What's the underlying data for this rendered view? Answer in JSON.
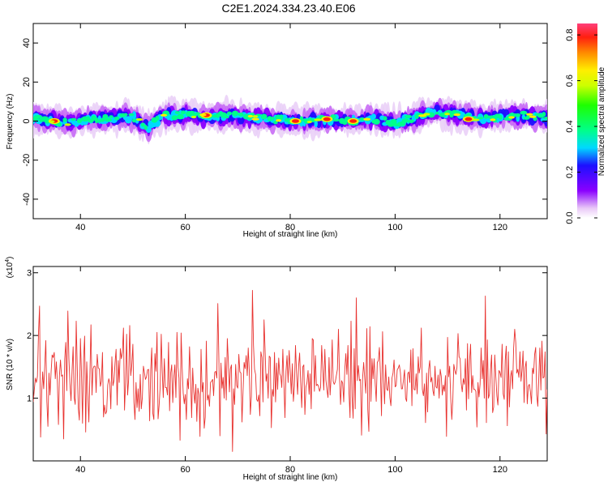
{
  "title": "C2E1.2024.334.23.40.E06",
  "colors": {
    "line": "#e8322f",
    "axis": "#000000",
    "background": "#ffffff"
  },
  "chart_data": [
    {
      "type": "heatmap",
      "xlabel": "Height of straight line (km)",
      "ylabel": "Frequency (Hz)",
      "xlim": [
        31,
        129
      ],
      "ylim": [
        -50,
        50
      ],
      "x_ticks": [
        40,
        60,
        80,
        100,
        120
      ],
      "y_ticks": [
        -40,
        -20,
        0,
        20,
        40
      ],
      "colorbar": {
        "label": "Normalized spectral amplitude",
        "range": [
          0,
          0.85
        ],
        "ticks": [
          0.0,
          0.2,
          0.4,
          0.6,
          0.8
        ],
        "tick_labels": [
          "0.0",
          "0.2",
          "0.4",
          "0.6",
          "0.8"
        ]
      },
      "ridge": {
        "description_free_points": [
          [
            32,
            1
          ],
          [
            35,
            0
          ],
          [
            38,
            -1
          ],
          [
            41,
            1
          ],
          [
            44,
            1
          ],
          [
            47,
            2
          ],
          [
            50,
            2
          ],
          [
            53,
            -3
          ],
          [
            56,
            3
          ],
          [
            60,
            3
          ],
          [
            64,
            2
          ],
          [
            68,
            3
          ],
          [
            72,
            2
          ],
          [
            76,
            1
          ],
          [
            80,
            0
          ],
          [
            84,
            0
          ],
          [
            88,
            1
          ],
          [
            92,
            0
          ],
          [
            96,
            1
          ],
          [
            100,
            -1
          ],
          [
            104,
            2
          ],
          [
            108,
            5
          ],
          [
            112,
            3
          ],
          [
            116,
            1
          ],
          [
            120,
            2
          ],
          [
            124,
            3
          ],
          [
            128,
            2
          ]
        ],
        "peaks": [
          [
            35,
            0
          ],
          [
            64,
            3
          ],
          [
            81,
            0
          ],
          [
            87,
            1
          ],
          [
            92,
            0
          ],
          [
            114,
            1
          ]
        ]
      }
    },
    {
      "type": "line",
      "xlabel": "Height of straight line (km)",
      "ylabel": "SNR (10 * v/v)",
      "multiplier_label": "(x10",
      "multiplier_exp": "4",
      "xlim": [
        31,
        129
      ],
      "ylim": [
        0,
        3.1
      ],
      "x_ticks": [
        40,
        60,
        80,
        100,
        120
      ],
      "y_ticks": [
        1,
        2,
        3
      ],
      "series": [
        {
          "sampling": {
            "x_start": 31,
            "x_step": 0.2
          },
          "y": [
            0.94,
            1.13,
            1.32,
            1.25,
            1.35,
            2.04,
            2.47,
            0.38,
            1.08,
            1.42,
            1.15,
            1.51,
            1.92,
            0.95,
            0.55,
            1.4,
            1.05,
            1.41,
            1.69,
            1.65,
            1.73,
            1.31,
            1.58,
            1.26,
            0.58,
            1.36,
            1.61,
            1.35,
            1.37,
            0.35,
            1.62,
            1.89,
            1.12,
            2.39,
            1.63,
            1.23,
            0.96,
            1.44,
            1.82,
            1.01,
            0.9,
            2.23,
            1.49,
            0.84,
            0.65,
            1.95,
            1.4,
            0.6,
            1.62,
            1.99,
            0.46,
            1.58,
            1.07,
            0.62,
            1.37,
            2.17,
            1.05,
            1.47,
            1.51,
            1.51,
            1.09,
            1.7,
            1.48,
            1.47,
            1.19,
            1.27,
            1.73,
            0.7,
            0.89,
            0.75,
            0.79,
            1.21,
            1.31,
            1.24,
            0.83,
            1.66,
            1.2,
            1.28,
            1.56,
            1.78,
            0.89,
            1.6,
            1.25,
            1.79,
            1.63,
            1.73,
            2.12,
            0.81,
            1.25,
            2.02,
            1.05,
            1.3,
            2.16,
            1.36,
            1.53,
            1.86,
            0.93,
            0.66,
            1.25,
            0.85,
            1.15,
            0.79,
            1.38,
            0.83,
            1.01,
            1.51,
            1.4,
            1.3,
            1.34,
            1.45,
            1.46,
            0.64,
            1.45,
            1.8,
            0.76,
            0.66,
            1.71,
            1.43,
            2.05,
            0.67,
            0.89,
            1.18,
            2.02,
            1.44,
            1.01,
            1.63,
            1.17,
            1.17,
            1.05,
            1.89,
            0.8,
            1.4,
            1.53,
            0.93,
            1.33,
            1.53,
            1.01,
            2.05,
            1.49,
            1.32,
            0.33,
            2.04,
            1.49,
            1.08,
            0.91,
            1.06,
            0.66,
            1.31,
            1.15,
            1.82,
            1.34,
            0.69,
            1.48,
            1.1,
            0.92,
            1.22,
            0.63,
            1.16,
            1.06,
            0.39,
            1.78,
            1.1,
            1.25,
            0.52,
            0.7,
            1.91,
            0.97,
            1.05,
            0.87,
            1.25,
            1.27,
            1.3,
            1.04,
            1.41,
            1.43,
            1.32,
            2.51,
            1.63,
            0.4,
            1.56,
            1.16,
            1.33,
            1.0,
            1.65,
            0.97,
            1.95,
            1.58,
            1.1,
            1.47,
            1.53,
            0.15,
            1.15,
            0.9,
            1.54,
            1.2,
            1.16,
            1.7,
            1.42,
            1.4,
            0.62,
            1.1,
            1.57,
            1.47,
            1.68,
            1.36,
            1.8,
            1.43,
            0.74,
            1.03,
            2.72,
            1.84,
            1.46,
            1.38,
            0.98,
            0.95,
            1.05,
            0.72,
            1.74,
            1.65,
            0.94,
            2.25,
            1.81,
            1.27,
            1.39,
            1.0,
            1.67,
            1.65,
            0.53,
            1.14,
            1.03,
            1.73,
            0.94,
            1.56,
            1.14,
            1.64,
            1.39,
            1.35,
            1.17,
            1.78,
            1.25,
            0.69,
            1.43,
            1.68,
            1.25,
            1.76,
            1.44,
            1.07,
            1.55,
            0.95,
            1.19,
            1.84,
            1.41,
            1.06,
            1.52,
            1.72,
            1.25,
            0.85,
            1.5,
            1.53,
            0.74,
            1.18,
            1.25,
            1.44,
            1.06,
            1.39,
            0.83,
            1.95,
            1.93,
            1.11,
            1.68,
            1.2,
            1.22,
            1.19,
            1.11,
            1.17,
            1.84,
            1.48,
            1.13,
            1.78,
            1.29,
            1.13,
            1.01,
            1.65,
            1.05,
            1.34,
            1.93,
            1.27,
            1.22,
            1.26,
            1.36,
            1.46,
            2.1,
            1.33,
            0.9,
            1.28,
            1.24,
            0.94,
            1.45,
            1.71,
            1.38,
            1.84,
            1.09,
            0.69,
            2.23,
            1.03,
            0.68,
            1.79,
            0.83,
            2.6,
            1.28,
            1.52,
            1.28,
            1.3,
            0.41,
            1.32,
            1.57,
            1.31,
            1.08,
            2.11,
            0.82,
            0.47,
            2.14,
            0.95,
            1.63,
            1.31,
            1.63,
            1.24,
            0.95,
            1.57,
            1.6,
            1.81,
            1.39,
            0.72,
            2.06,
            1.3,
            0.91,
            1.53,
            1.15,
            1.12,
            1.34,
            1.01,
            0.88,
            1.32,
            1.4,
            1.61,
            1.18,
            1.2,
            1.45,
            1.48,
            1.53,
            1.41,
            1.15,
            1.15,
            1.29,
            1.45,
            1.0,
            0.95,
            1.39,
            1.42,
            1.25,
            1.77,
            0.88,
            1.79,
            1.14,
            1.13,
            1.39,
            1.07,
            1.66,
            1.4,
            1.5,
            2.12,
            1.14,
            1.04,
            1.23,
            0.61,
            1.4,
            0.78,
            1.46,
            1.6,
            1.26,
            1.33,
            1.12,
            1.04,
            1.51,
            1.18,
            1.16,
            1.37,
            1.0,
            1.46,
            1.35,
            1.05,
            1.21,
            1.11,
            1.36,
            0.39,
            1.97,
            1.34,
            1.51,
            1.0,
            0.66,
            0.98,
            1.54,
            1.44,
            1.38,
            1.49,
            2.03,
            1.66,
            1.63,
            1.24,
            1.1,
            1.31,
            1.22,
            1.63,
            0.81,
            1.87,
            0.99,
            1.61,
            1.86,
            1.09,
            1.36,
            1.14,
            1.14,
            1.11,
            0.54,
            1.25,
            1.02,
            1.22,
            1.8,
            1.31,
            1.6,
            1.0,
            2.63,
            0.61,
            1.93,
            1.0,
            1.06,
            1.45,
            1.69,
            0.77,
            0.86,
            1.69,
            1.35,
            1.04,
            0.89,
            1.44,
            1.41,
            1.33,
            1.86,
            1.07,
            0.98,
            1.6,
            1.83,
            0.56,
            1.74,
            0.86,
            1.34,
            1.44,
            1.15,
            1.8,
            2.1,
            1.89,
            1.4,
            1.46,
            1.33,
            1.74,
            1.27,
            1.44,
            1.75,
            0.93,
            1.49,
            1.59,
            0.91,
            1.19,
            1.22,
            1.1,
            0.91,
            1.48,
            1.39,
            1.7,
            1.81,
            1.05,
            0.87,
            1.31,
            1.8,
            1.13,
            1.91,
            1.32,
            1.34,
            1.74,
            0.43,
            1.14,
            1.48,
            1.22,
            1.19,
            1.56,
            1.63,
            1.14,
            1.47,
            0.98,
            1.24,
            0.87,
            1.25,
            1.1,
            1.49,
            1.44,
            1.08,
            1.64,
            0.57,
            1.54,
            1.71,
            1.49,
            1.5,
            1.89,
            1.02,
            2.14,
            0.44,
            1.21,
            1.39,
            1.45,
            1.4,
            0.99,
            1.53,
            1.21,
            1.68,
            1.85,
            0.79,
            1.19,
            1.1,
            1.74,
            1.42,
            1.16,
            1.51,
            1.9,
            1.01,
            1.37,
            1.08,
            1.51,
            1.09,
            0.95
          ]
        }
      ]
    }
  ]
}
